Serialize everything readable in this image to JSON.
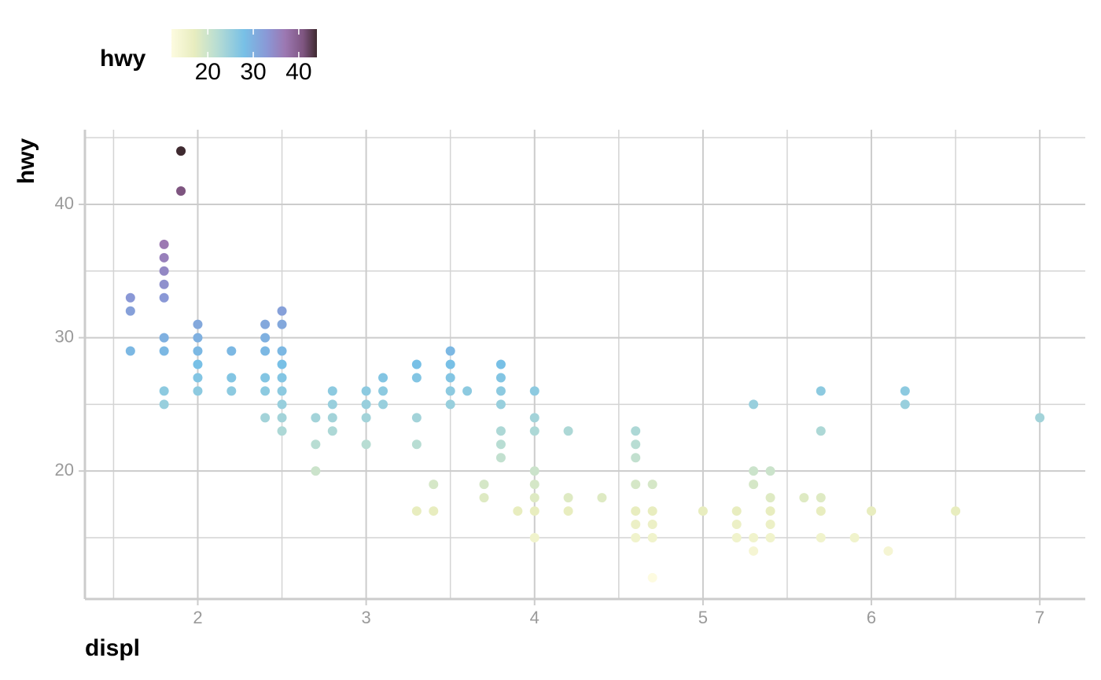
{
  "chart_data": {
    "type": "scatter",
    "x_label": "displ",
    "y_label": "hwy",
    "legend_title": "hwy",
    "legend_ticks": [
      20,
      30,
      40
    ],
    "colorscale": [
      {
        "value": 12,
        "color": "#fdfbe0"
      },
      {
        "value": 17,
        "color": "#e8edbf"
      },
      {
        "value": 22,
        "color": "#b8ddd3"
      },
      {
        "value": 28,
        "color": "#78c0e6"
      },
      {
        "value": 33,
        "color": "#8a98d6"
      },
      {
        "value": 37,
        "color": "#9c78b2"
      },
      {
        "value": 41,
        "color": "#7e5580"
      },
      {
        "value": 44,
        "color": "#3f2a30"
      }
    ],
    "xlim": [
      1.33,
      7.27
    ],
    "ylim": [
      10.4,
      45.6
    ],
    "xticks": [
      2,
      3,
      4,
      5,
      6,
      7
    ],
    "yticks": [
      20,
      30,
      40
    ],
    "x_minor_ticks": [
      1.5,
      2.5,
      3.5,
      4.5,
      5.5,
      6.5
    ],
    "y_minor_ticks": [
      15,
      25,
      35,
      45
    ],
    "grid": true,
    "x": [
      1.6,
      1.6,
      1.6,
      1.8,
      1.8,
      1.8,
      1.8,
      1.8,
      1.8,
      1.8,
      1.8,
      1.8,
      1.9,
      1.9,
      2,
      2,
      2,
      2,
      2,
      2,
      2.2,
      2.2,
      2.2,
      2.4,
      2.4,
      2.4,
      2.4,
      2.4,
      2.4,
      2.5,
      2.5,
      2.5,
      2.5,
      2.5,
      2.5,
      2.5,
      2.5,
      2.5,
      2.7,
      2.7,
      2.7,
      2.8,
      2.8,
      2.8,
      2.8,
      3,
      3,
      3,
      3,
      3.1,
      3.1,
      3.1,
      3.3,
      3.3,
      3.3,
      3.3,
      3.3,
      3.4,
      3.4,
      3.5,
      3.5,
      3.5,
      3.5,
      3.5,
      3.6,
      3.7,
      3.7,
      3.8,
      3.8,
      3.8,
      3.8,
      3.8,
      3.8,
      3.8,
      3.9,
      4,
      4,
      4,
      4,
      4,
      4,
      4,
      4,
      4.2,
      4.2,
      4.2,
      4.4,
      4.6,
      4.6,
      4.6,
      4.6,
      4.6,
      4.6,
      4.6,
      4.7,
      4.7,
      4.7,
      4.7,
      4.7,
      5,
      5.2,
      5.2,
      5.2,
      5.3,
      5.3,
      5.3,
      5.3,
      5.3,
      5.4,
      5.4,
      5.4,
      5.4,
      5.4,
      5.6,
      5.7,
      5.7,
      5.7,
      5.7,
      5.7,
      5.9,
      6,
      6.1,
      6.2,
      6.2,
      6.5,
      7
    ],
    "values": [
      33,
      32,
      29,
      37,
      36,
      35,
      34,
      33,
      30,
      29,
      26,
      25,
      44,
      41,
      31,
      30,
      29,
      28,
      27,
      26,
      29,
      27,
      26,
      31,
      30,
      29,
      27,
      26,
      24,
      32,
      31,
      29,
      28,
      27,
      26,
      25,
      24,
      23,
      24,
      22,
      20,
      26,
      25,
      24,
      23,
      26,
      25,
      24,
      22,
      27,
      26,
      25,
      28,
      27,
      24,
      22,
      17,
      19,
      17,
      29,
      28,
      27,
      26,
      25,
      26,
      19,
      18,
      28,
      27,
      26,
      25,
      23,
      22,
      21,
      17,
      26,
      24,
      23,
      20,
      19,
      18,
      17,
      15,
      23,
      18,
      17,
      18,
      23,
      22,
      21,
      19,
      17,
      16,
      15,
      19,
      17,
      16,
      15,
      12,
      17,
      17,
      16,
      15,
      25,
      20,
      19,
      15,
      14,
      20,
      18,
      17,
      16,
      15,
      18,
      26,
      23,
      18,
      17,
      15,
      15,
      17,
      14,
      26,
      25,
      17,
      24
    ]
  }
}
